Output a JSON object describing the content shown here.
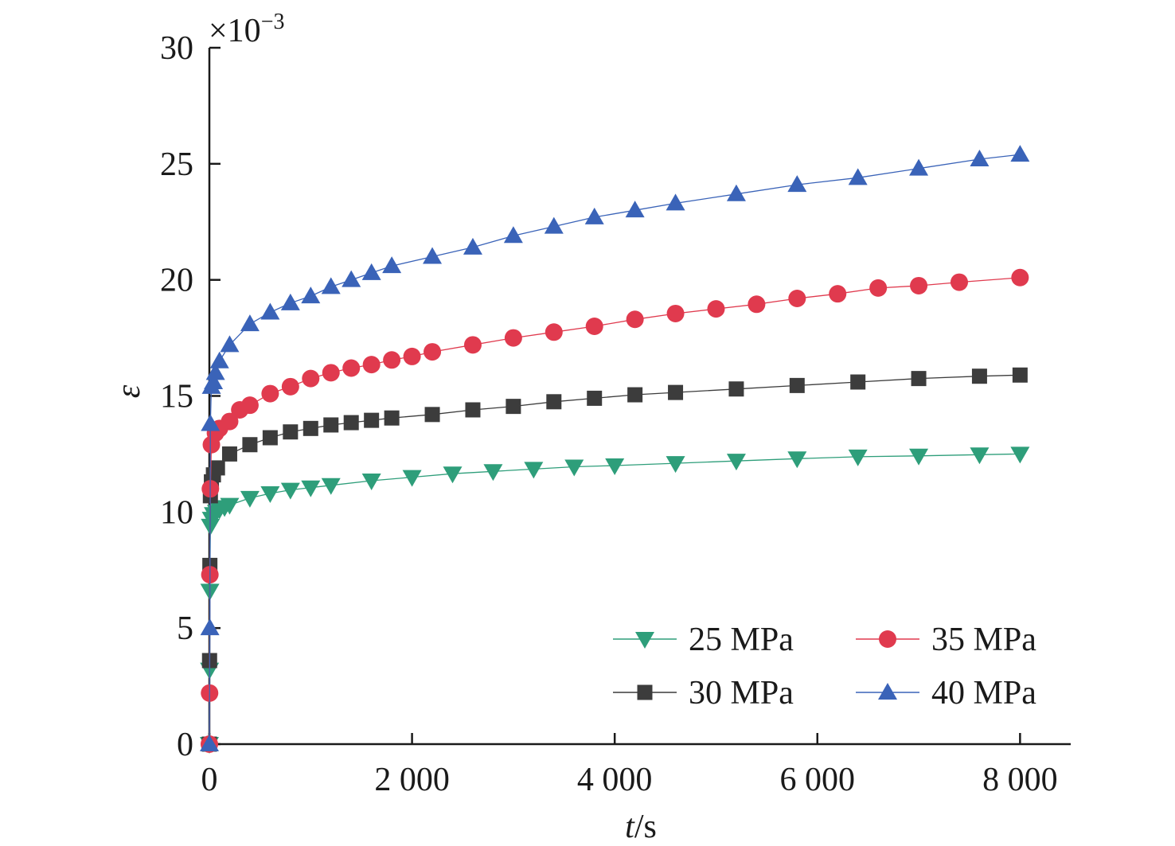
{
  "chart_data": {
    "type": "line",
    "xlabel_italic": "t",
    "xlabel_unit": "/s",
    "ylabel": "ε",
    "y_multiplier": {
      "base": "×10",
      "exponent": "−3"
    },
    "xlim": [
      0,
      8500
    ],
    "ylim": [
      0,
      30
    ],
    "x_ticks": [
      0,
      2000,
      4000,
      6000,
      8000
    ],
    "x_tick_labels": [
      "0",
      "2 000",
      "4 000",
      "6 000",
      "8 000"
    ],
    "y_ticks": [
      0,
      5,
      10,
      15,
      20,
      25,
      30
    ],
    "y_tick_labels": [
      "0",
      "5",
      "10",
      "15",
      "20",
      "25",
      "30"
    ],
    "grid": false,
    "legend_position": "bottom-right",
    "series": [
      {
        "name": "25 MPa",
        "color": "#2e9e7a",
        "marker": "triangle-down",
        "x": [
          0,
          2,
          5,
          10,
          20,
          40,
          70,
          100,
          150,
          200,
          400,
          600,
          800,
          1000,
          1200,
          1600,
          2000,
          2400,
          2800,
          3200,
          3600,
          4000,
          4600,
          5200,
          5800,
          6400,
          7000,
          7600,
          8000
        ],
        "y": [
          0,
          3.2,
          6.6,
          9.4,
          9.7,
          9.9,
          10.0,
          10.1,
          10.2,
          10.3,
          10.6,
          10.8,
          10.95,
          11.05,
          11.15,
          11.35,
          11.5,
          11.65,
          11.75,
          11.85,
          11.95,
          12.0,
          12.1,
          12.2,
          12.3,
          12.38,
          12.42,
          12.47,
          12.5
        ]
      },
      {
        "name": "30 MPa",
        "color": "#3c3c3c",
        "marker": "square",
        "x": [
          0,
          2,
          5,
          10,
          20,
          40,
          80,
          200,
          400,
          600,
          800,
          1000,
          1200,
          1400,
          1600,
          1800,
          2200,
          2600,
          3000,
          3400,
          3800,
          4200,
          4600,
          5200,
          5800,
          6400,
          7000,
          7600,
          8000
        ],
        "y": [
          0,
          3.6,
          7.7,
          10.7,
          11.3,
          11.6,
          11.9,
          12.5,
          12.9,
          13.2,
          13.45,
          13.6,
          13.75,
          13.85,
          13.95,
          14.05,
          14.2,
          14.4,
          14.55,
          14.75,
          14.9,
          15.05,
          15.15,
          15.3,
          15.45,
          15.6,
          15.75,
          15.85,
          15.9
        ]
      },
      {
        "name": "35 MPa",
        "color": "#e03a4e",
        "marker": "circle",
        "x": [
          0,
          2,
          5,
          10,
          20,
          60,
          100,
          200,
          300,
          400,
          600,
          800,
          1000,
          1200,
          1400,
          1600,
          1800,
          2000,
          2200,
          2600,
          3000,
          3400,
          3800,
          4200,
          4600,
          5000,
          5400,
          5800,
          6200,
          6600,
          7000,
          7400,
          8000
        ],
        "y": [
          0,
          2.2,
          7.3,
          11.0,
          12.9,
          13.4,
          13.6,
          13.9,
          14.4,
          14.6,
          15.1,
          15.4,
          15.75,
          16.0,
          16.2,
          16.35,
          16.55,
          16.7,
          16.9,
          17.2,
          17.5,
          17.75,
          18.0,
          18.3,
          18.55,
          18.75,
          18.95,
          19.2,
          19.4,
          19.65,
          19.75,
          19.9,
          20.1
        ]
      },
      {
        "name": "40 MPa",
        "color": "#3a63b8",
        "marker": "triangle-up",
        "x": [
          0,
          5,
          10,
          20,
          40,
          60,
          100,
          200,
          400,
          600,
          800,
          1000,
          1200,
          1400,
          1600,
          1800,
          2200,
          2600,
          3000,
          3400,
          3800,
          4200,
          4600,
          5200,
          5800,
          6400,
          7000,
          7600,
          8000
        ],
        "y": [
          0,
          5.0,
          13.8,
          15.4,
          15.6,
          16.0,
          16.5,
          17.2,
          18.1,
          18.6,
          19.0,
          19.3,
          19.7,
          20.0,
          20.3,
          20.6,
          21.0,
          21.4,
          21.9,
          22.3,
          22.7,
          23.0,
          23.3,
          23.7,
          24.1,
          24.4,
          24.8,
          25.2,
          25.4
        ]
      }
    ]
  }
}
